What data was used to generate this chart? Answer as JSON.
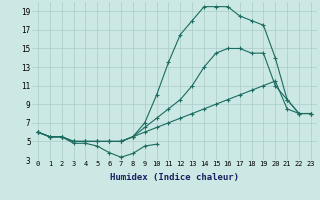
{
  "xlabel": "Humidex (Indice chaleur)",
  "background_color": "#cce8e4",
  "grid_color": "#aaccca",
  "line_color": "#1a6b60",
  "xlim": [
    -0.5,
    23.5
  ],
  "ylim": [
    3,
    20
  ],
  "xticks": [
    0,
    1,
    2,
    3,
    4,
    5,
    6,
    7,
    8,
    9,
    10,
    11,
    12,
    13,
    14,
    15,
    16,
    17,
    18,
    19,
    20,
    21,
    22,
    23
  ],
  "yticks": [
    3,
    5,
    7,
    9,
    11,
    13,
    15,
    17,
    19
  ],
  "series": [
    {
      "x": [
        0,
        1,
        2,
        3,
        4,
        5,
        6,
        7,
        8,
        9,
        10
      ],
      "y": [
        6.0,
        5.5,
        5.5,
        4.8,
        4.8,
        4.5,
        3.8,
        3.3,
        3.7,
        4.5,
        4.7
      ]
    },
    {
      "x": [
        0,
        1,
        2,
        3,
        4,
        5,
        6,
        7,
        8,
        9,
        10,
        11,
        12,
        13,
        14,
        15,
        16,
        17,
        18,
        19,
        20,
        21,
        22,
        23
      ],
      "y": [
        6.0,
        5.5,
        5.5,
        5.0,
        5.0,
        5.0,
        5.0,
        5.0,
        5.5,
        6.0,
        6.5,
        7.0,
        7.5,
        8.0,
        8.5,
        9.0,
        9.5,
        10.0,
        10.5,
        11.0,
        11.5,
        8.5,
        8.0,
        8.0
      ]
    },
    {
      "x": [
        0,
        1,
        2,
        3,
        4,
        5,
        6,
        7,
        8,
        9,
        10,
        11,
        12,
        13,
        14,
        15,
        16,
        17,
        18,
        19,
        20,
        21,
        22,
        23
      ],
      "y": [
        6.0,
        5.5,
        5.5,
        5.0,
        5.0,
        5.0,
        5.0,
        5.0,
        5.5,
        6.5,
        7.5,
        8.5,
        9.5,
        11.0,
        13.0,
        14.5,
        15.0,
        15.0,
        14.5,
        14.5,
        11.0,
        9.5,
        8.0,
        8.0
      ]
    },
    {
      "x": [
        0,
        1,
        2,
        3,
        4,
        5,
        6,
        7,
        8,
        9,
        10,
        11,
        12,
        13,
        14,
        15,
        16,
        17,
        18,
        19,
        20,
        21,
        22,
        23
      ],
      "y": [
        6.0,
        5.5,
        5.5,
        5.0,
        5.0,
        5.0,
        5.0,
        5.0,
        5.5,
        7.0,
        10.0,
        13.5,
        16.5,
        18.0,
        19.5,
        19.5,
        19.5,
        18.5,
        18.0,
        17.5,
        14.0,
        9.5,
        8.0,
        8.0
      ]
    }
  ]
}
